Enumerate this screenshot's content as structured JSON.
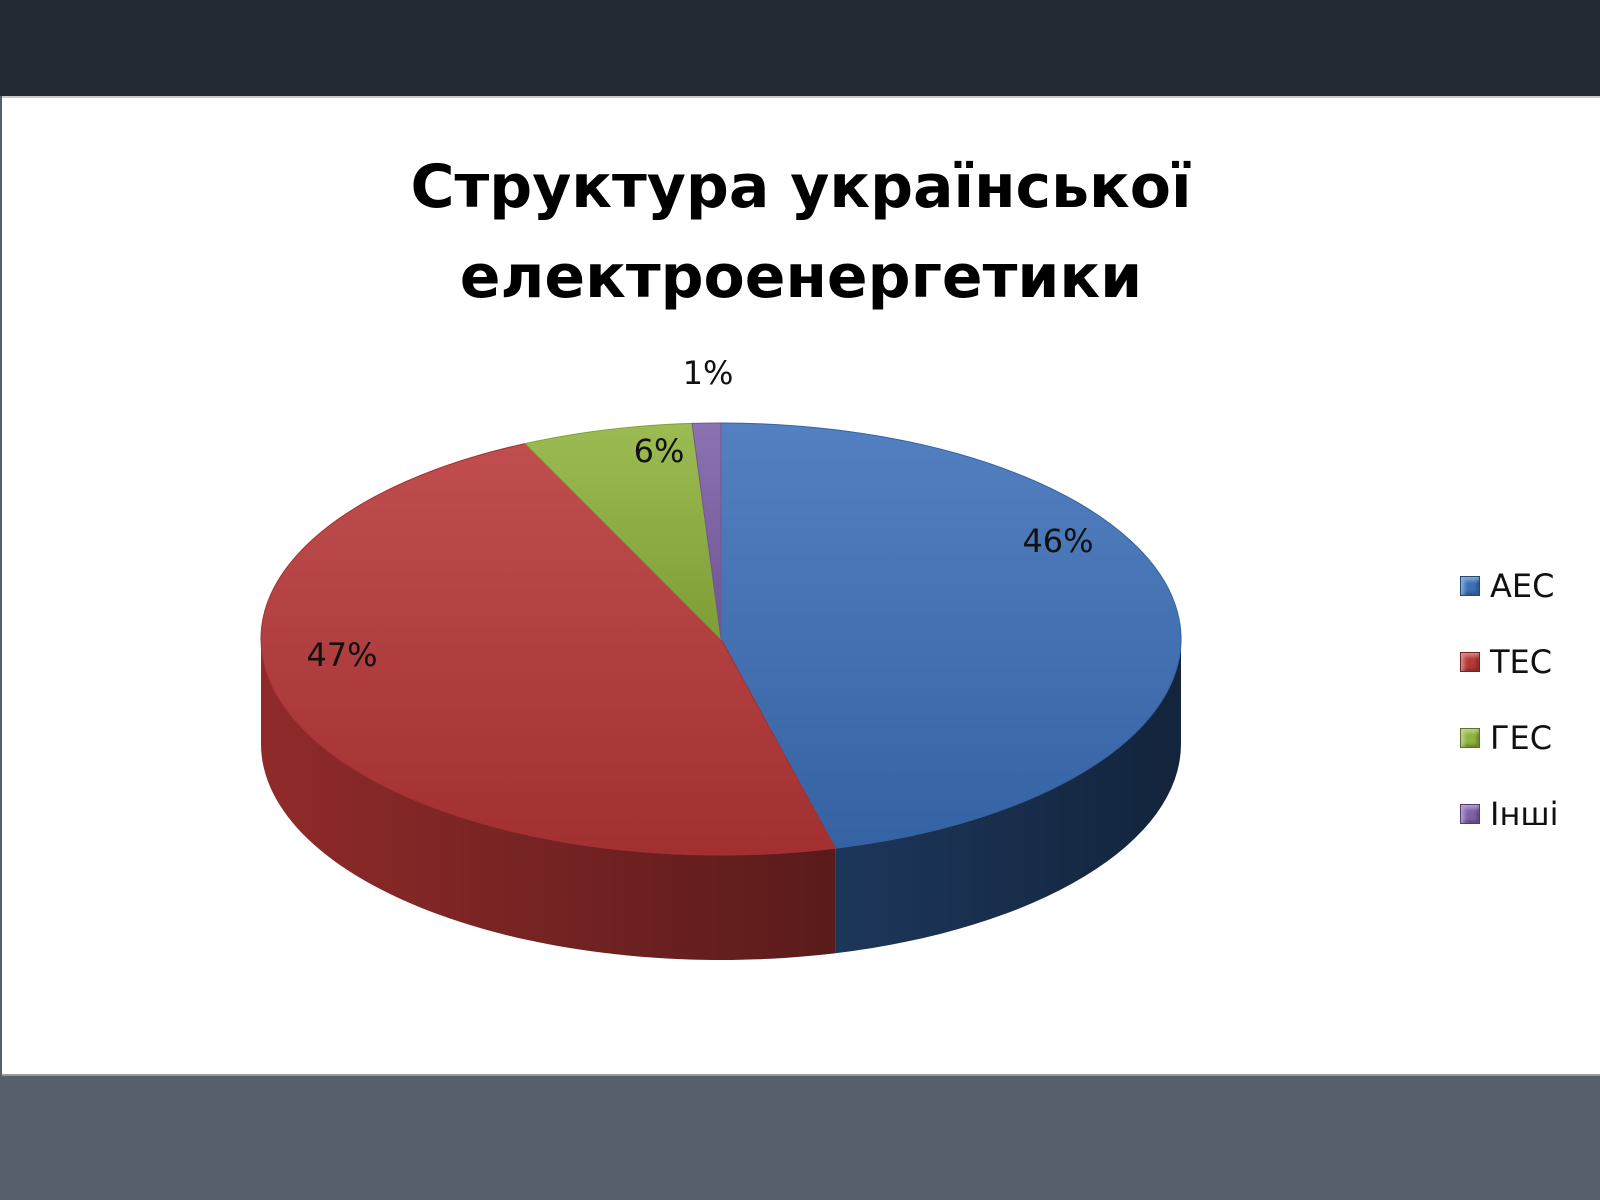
{
  "chart_data": {
    "type": "pie",
    "title": [
      "Структура української",
      "електроенергетики"
    ],
    "start_angle_deg": 0,
    "direction": "clockwise",
    "legend_position": "right",
    "slices": [
      {
        "name": "АЕС",
        "value": 46,
        "label": "46%",
        "color": "#3b6fb8"
      },
      {
        "name": "ТЕС",
        "value": 47,
        "label": "47%",
        "color": "#b83636"
      },
      {
        "name": "ГЕС",
        "value": 6,
        "label": "6%",
        "color": "#8fb33c"
      },
      {
        "name": "Інші",
        "value": 1,
        "label": "1%",
        "color": "#7e5fa8"
      }
    ]
  }
}
